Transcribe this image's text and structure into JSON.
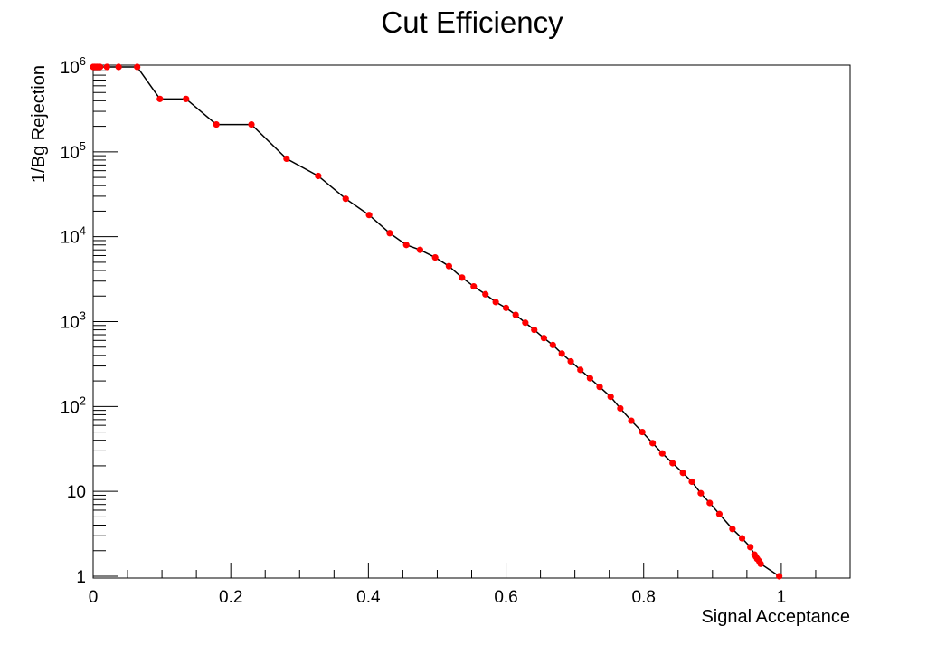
{
  "chart_data": {
    "type": "line",
    "title": "Cut Efficiency",
    "xlabel": "Signal Acceptance",
    "ylabel": "1/Bg Rejection",
    "xlim": [
      0,
      1.1
    ],
    "ylim": [
      1,
      1000000
    ],
    "yscale": "log",
    "x_ticks": [
      0,
      0.2,
      0.4,
      0.6,
      0.8,
      1
    ],
    "x_tick_labels": [
      "0",
      "0.2",
      "0.4",
      "0.6",
      "0.8",
      "1"
    ],
    "y_ticks": [
      1,
      10,
      100,
      1000,
      10000,
      100000,
      1000000
    ],
    "y_tick_labels": [
      {
        "base": "1",
        "exp": ""
      },
      {
        "base": "10",
        "exp": ""
      },
      {
        "base": "10",
        "exp": "2"
      },
      {
        "base": "10",
        "exp": "3"
      },
      {
        "base": "10",
        "exp": "4"
      },
      {
        "base": "10",
        "exp": "5"
      },
      {
        "base": "10",
        "exp": "6"
      }
    ],
    "grid": false,
    "line_color": "#000000",
    "marker_color": "#ff0000",
    "series": [
      {
        "name": "Cut Efficiency",
        "points": [
          [
            0.0,
            1000000
          ],
          [
            0.002,
            1000000
          ],
          [
            0.004,
            1000000
          ],
          [
            0.006,
            1000000
          ],
          [
            0.008,
            1000000
          ],
          [
            0.01,
            1000000
          ],
          [
            0.02,
            1000000
          ],
          [
            0.037,
            1000000
          ],
          [
            0.064,
            1000000
          ],
          [
            0.097,
            420000
          ],
          [
            0.135,
            420000
          ],
          [
            0.179,
            210000
          ],
          [
            0.23,
            210000
          ],
          [
            0.281,
            83000
          ],
          [
            0.327,
            52000
          ],
          [
            0.367,
            28000
          ],
          [
            0.401,
            18000
          ],
          [
            0.431,
            11000
          ],
          [
            0.455,
            8000
          ],
          [
            0.475,
            7000
          ],
          [
            0.497,
            5700
          ],
          [
            0.517,
            4500
          ],
          [
            0.536,
            3300
          ],
          [
            0.553,
            2600
          ],
          [
            0.57,
            2100
          ],
          [
            0.585,
            1700
          ],
          [
            0.6,
            1450
          ],
          [
            0.614,
            1200
          ],
          [
            0.628,
            970
          ],
          [
            0.641,
            800
          ],
          [
            0.655,
            640
          ],
          [
            0.668,
            530
          ],
          [
            0.681,
            420
          ],
          [
            0.694,
            340
          ],
          [
            0.708,
            270
          ],
          [
            0.722,
            215
          ],
          [
            0.736,
            170
          ],
          [
            0.752,
            130
          ],
          [
            0.766,
            95
          ],
          [
            0.782,
            68
          ],
          [
            0.798,
            50
          ],
          [
            0.813,
            37
          ],
          [
            0.827,
            28
          ],
          [
            0.842,
            21.5
          ],
          [
            0.857,
            16.5
          ],
          [
            0.87,
            13
          ],
          [
            0.883,
            9.5
          ],
          [
            0.896,
            7.3
          ],
          [
            0.91,
            5.4
          ],
          [
            0.929,
            3.6
          ],
          [
            0.943,
            2.8
          ],
          [
            0.955,
            2.2
          ],
          [
            0.961,
            1.8
          ],
          [
            0.963,
            1.7
          ],
          [
            0.965,
            1.6
          ],
          [
            0.968,
            1.5
          ],
          [
            0.97,
            1.4
          ],
          [
            0.997,
            1.0
          ]
        ]
      }
    ]
  }
}
